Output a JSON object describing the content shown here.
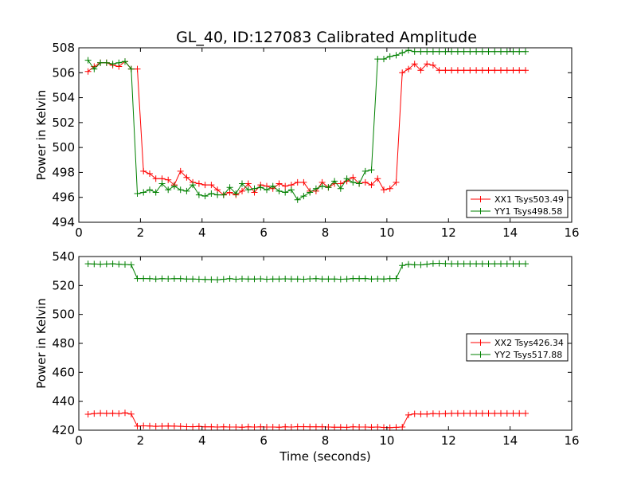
{
  "title": "GL_40, ID:127083 Calibrated Amplitude",
  "chart_data": [
    {
      "type": "line",
      "xlabel": "",
      "ylabel": "Power in Kelvin",
      "xlim": [
        0,
        16
      ],
      "ylim": [
        494,
        508
      ],
      "xticks": [
        0,
        2,
        4,
        6,
        8,
        10,
        12,
        14,
        16
      ],
      "yticks": [
        494,
        496,
        498,
        500,
        502,
        504,
        506,
        508
      ],
      "legend_position": "lower-right",
      "series": [
        {
          "name": "XX1 Tsys503.49",
          "color": "#ff0000",
          "x": [
            0.3,
            0.5,
            0.7,
            0.9,
            1.1,
            1.3,
            1.5,
            1.7,
            1.9,
            2.1,
            2.3,
            2.5,
            2.7,
            2.9,
            3.1,
            3.3,
            3.5,
            3.7,
            3.9,
            4.1,
            4.3,
            4.5,
            4.7,
            4.9,
            5.1,
            5.3,
            5.5,
            5.7,
            5.9,
            6.1,
            6.3,
            6.5,
            6.7,
            6.9,
            7.1,
            7.3,
            7.5,
            7.7,
            7.9,
            8.1,
            8.3,
            8.5,
            8.7,
            8.9,
            9.1,
            9.3,
            9.5,
            9.7,
            9.9,
            10.1,
            10.3,
            10.5,
            10.7,
            10.9,
            11.1,
            11.3,
            11.5,
            11.7,
            11.9,
            12.1,
            12.3,
            12.5,
            12.7,
            12.9,
            13.1,
            13.3,
            13.5,
            13.7,
            13.9,
            14.1,
            14.3,
            14.5
          ],
          "y": [
            506.1,
            506.5,
            506.8,
            506.8,
            506.6,
            506.5,
            506.9,
            506.3,
            506.3,
            498.1,
            497.9,
            497.5,
            497.5,
            497.4,
            497.0,
            498.1,
            497.6,
            497.2,
            497.1,
            497.0,
            497.0,
            496.6,
            496.2,
            496.4,
            496.2,
            496.5,
            497.1,
            496.4,
            497.0,
            496.9,
            496.7,
            497.1,
            496.9,
            497.0,
            497.2,
            497.2,
            496.5,
            496.5,
            497.2,
            496.8,
            497.1,
            497.1,
            497.3,
            497.6,
            497.1,
            497.2,
            497.0,
            497.5,
            496.6,
            496.7,
            497.2,
            506.0,
            506.3,
            506.7,
            506.2,
            506.7,
            506.6,
            506.2,
            506.2,
            506.2,
            506.2,
            506.2,
            506.2,
            506.2,
            506.2,
            506.2,
            506.2,
            506.2,
            506.2,
            506.2,
            506.2,
            506.2
          ]
        },
        {
          "name": "YY1 Tsys498.58",
          "color": "#008000",
          "x": [
            0.3,
            0.5,
            0.7,
            0.9,
            1.1,
            1.3,
            1.5,
            1.7,
            1.9,
            2.1,
            2.3,
            2.5,
            2.7,
            2.9,
            3.1,
            3.3,
            3.5,
            3.7,
            3.9,
            4.1,
            4.3,
            4.5,
            4.7,
            4.9,
            5.1,
            5.3,
            5.5,
            5.7,
            5.9,
            6.1,
            6.3,
            6.5,
            6.7,
            6.9,
            7.1,
            7.3,
            7.5,
            7.7,
            7.9,
            8.1,
            8.3,
            8.5,
            8.7,
            8.9,
            9.1,
            9.3,
            9.5,
            9.7,
            9.9,
            10.1,
            10.3,
            10.5,
            10.7,
            10.9,
            11.1,
            11.3,
            11.5,
            11.7,
            11.9,
            12.1,
            12.3,
            12.5,
            12.7,
            12.9,
            13.1,
            13.3,
            13.5,
            13.7,
            13.9,
            14.1,
            14.3,
            14.5
          ],
          "y": [
            507.0,
            506.3,
            506.8,
            506.8,
            506.7,
            506.8,
            506.9,
            506.3,
            496.3,
            496.4,
            496.6,
            496.4,
            497.1,
            496.6,
            496.9,
            496.6,
            496.5,
            497.0,
            496.2,
            496.1,
            496.3,
            496.2,
            496.2,
            496.8,
            496.3,
            497.1,
            496.6,
            496.7,
            496.8,
            496.6,
            496.9,
            496.5,
            496.4,
            496.6,
            495.8,
            496.1,
            496.4,
            496.7,
            496.9,
            496.8,
            497.3,
            496.7,
            497.5,
            497.2,
            497.1,
            498.1,
            498.2,
            507.1,
            507.1,
            507.3,
            507.4,
            507.6,
            507.8,
            507.7,
            507.7,
            507.7,
            507.7,
            507.7,
            507.7,
            507.7,
            507.7,
            507.7,
            507.7,
            507.7,
            507.7,
            507.7,
            507.7,
            507.7,
            507.7,
            507.7,
            507.7,
            507.7
          ]
        }
      ]
    },
    {
      "type": "line",
      "xlabel": "Time (seconds)",
      "ylabel": "Power in Kelvin",
      "xlim": [
        0,
        16
      ],
      "ylim": [
        420,
        540
      ],
      "xticks": [
        0,
        2,
        4,
        6,
        8,
        10,
        12,
        14,
        16
      ],
      "yticks": [
        420,
        440,
        460,
        480,
        500,
        520,
        540
      ],
      "legend_position": "center-right",
      "series": [
        {
          "name": "XX2 Tsys426.34",
          "color": "#ff0000",
          "x": [
            0.3,
            0.5,
            0.7,
            0.9,
            1.1,
            1.3,
            1.5,
            1.7,
            1.9,
            2.1,
            2.3,
            2.5,
            2.7,
            2.9,
            3.1,
            3.3,
            3.5,
            3.7,
            3.9,
            4.1,
            4.3,
            4.5,
            4.7,
            4.9,
            5.1,
            5.3,
            5.5,
            5.7,
            5.9,
            6.1,
            6.3,
            6.5,
            6.7,
            6.9,
            7.1,
            7.3,
            7.5,
            7.7,
            7.9,
            8.1,
            8.3,
            8.5,
            8.7,
            8.9,
            9.1,
            9.3,
            9.5,
            9.7,
            9.9,
            10.1,
            10.3,
            10.5,
            10.7,
            10.9,
            11.1,
            11.3,
            11.5,
            11.7,
            11.9,
            12.1,
            12.3,
            12.5,
            12.7,
            12.9,
            13.1,
            13.3,
            13.5,
            13.7,
            13.9,
            14.1,
            14.3,
            14.5
          ],
          "y": [
            431,
            431.5,
            431.8,
            431.6,
            431.7,
            431.5,
            432,
            431.2,
            422.8,
            423.0,
            422.9,
            422.7,
            422.8,
            422.9,
            422.8,
            422.7,
            422.5,
            422.4,
            422.6,
            422.3,
            422.3,
            422.2,
            422.3,
            422.2,
            422.2,
            422.1,
            422.3,
            422.2,
            422.3,
            422.2,
            422.2,
            422.1,
            422.3,
            422.2,
            422.4,
            422.4,
            422.3,
            422.3,
            422.3,
            422.2,
            422.1,
            422.1,
            422.0,
            422.3,
            422.2,
            422.2,
            422.1,
            422.2,
            421.9,
            421.8,
            422.0,
            422.2,
            430.5,
            431.3,
            431.1,
            431.2,
            431.5,
            431.3,
            431.4,
            431.6,
            431.6,
            431.6,
            431.6,
            431.6,
            431.6,
            431.6,
            431.6,
            431.6,
            431.6,
            431.6,
            431.6,
            431.6
          ]
        },
        {
          "name": "YY2 Tsys517.88",
          "color": "#008000",
          "x": [
            0.3,
            0.5,
            0.7,
            0.9,
            1.1,
            1.3,
            1.5,
            1.7,
            1.9,
            2.1,
            2.3,
            2.5,
            2.7,
            2.9,
            3.1,
            3.3,
            3.5,
            3.7,
            3.9,
            4.1,
            4.3,
            4.5,
            4.7,
            4.9,
            5.1,
            5.3,
            5.5,
            5.7,
            5.9,
            6.1,
            6.3,
            6.5,
            6.7,
            6.9,
            7.1,
            7.3,
            7.5,
            7.7,
            7.9,
            8.1,
            8.3,
            8.5,
            8.7,
            8.9,
            9.1,
            9.3,
            9.5,
            9.7,
            9.9,
            10.1,
            10.3,
            10.5,
            10.7,
            10.9,
            11.1,
            11.3,
            11.5,
            11.7,
            11.9,
            12.1,
            12.3,
            12.5,
            12.7,
            12.9,
            13.1,
            13.3,
            13.5,
            13.7,
            13.9,
            14.1,
            14.3,
            14.5
          ],
          "y": [
            535,
            534.8,
            534.7,
            534.8,
            535,
            534.7,
            534.5,
            534.3,
            524.8,
            524.8,
            524.7,
            524.5,
            524.7,
            524.6,
            524.7,
            524.7,
            524.5,
            524.4,
            524.3,
            524.2,
            524.1,
            524.0,
            524.3,
            524.7,
            524.3,
            524.6,
            524.5,
            524.4,
            524.6,
            524.3,
            524.5,
            524.4,
            524.6,
            524.5,
            524.4,
            524.3,
            524.6,
            524.7,
            524.5,
            524.4,
            524.5,
            524.3,
            524.4,
            524.8,
            524.7,
            524.8,
            524.5,
            524.6,
            524.5,
            524.7,
            524.8,
            533.8,
            534.6,
            534.3,
            534.2,
            534.7,
            535.2,
            535.3,
            535.1,
            535.0,
            535.0,
            535.0,
            535.0,
            535.0,
            535.0,
            535.0,
            535.0,
            535.0,
            535.0,
            535.0,
            535.0,
            535.0
          ]
        }
      ]
    }
  ]
}
